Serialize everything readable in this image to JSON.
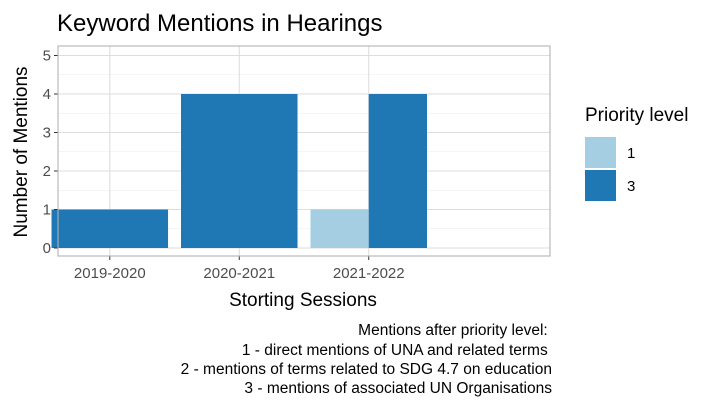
{
  "chart_data": {
    "type": "bar",
    "stacked": "dodge",
    "title": "Keyword Mentions in Hearings",
    "xlabel": "Storting Sessions",
    "ylabel": "Number of Mentions",
    "categories": [
      "2019-2020",
      "2020-2021",
      "2021-2022"
    ],
    "ylim": [
      0,
      5
    ],
    "yticks": [
      0,
      1,
      2,
      3,
      4,
      5
    ],
    "grid": true,
    "legend": {
      "title": "Priority level",
      "placement": "right",
      "entries": [
        {
          "label": "1",
          "color": "#a6cee3"
        },
        {
          "label": "3",
          "color": "#1f78b4"
        }
      ]
    },
    "series": [
      {
        "name": "1",
        "color": "#a6cee3",
        "values": [
          0,
          0,
          1
        ]
      },
      {
        "name": "3",
        "color": "#1f78b4",
        "values": [
          1,
          4,
          4
        ]
      }
    ],
    "caption": [
      "Mentions after priority level: ",
      "1 - direct mentions of UNA and related terms ",
      "2 - mentions of terms related to SDG 4.7 on education",
      "3 - mentions of associated UN Organisations"
    ]
  }
}
